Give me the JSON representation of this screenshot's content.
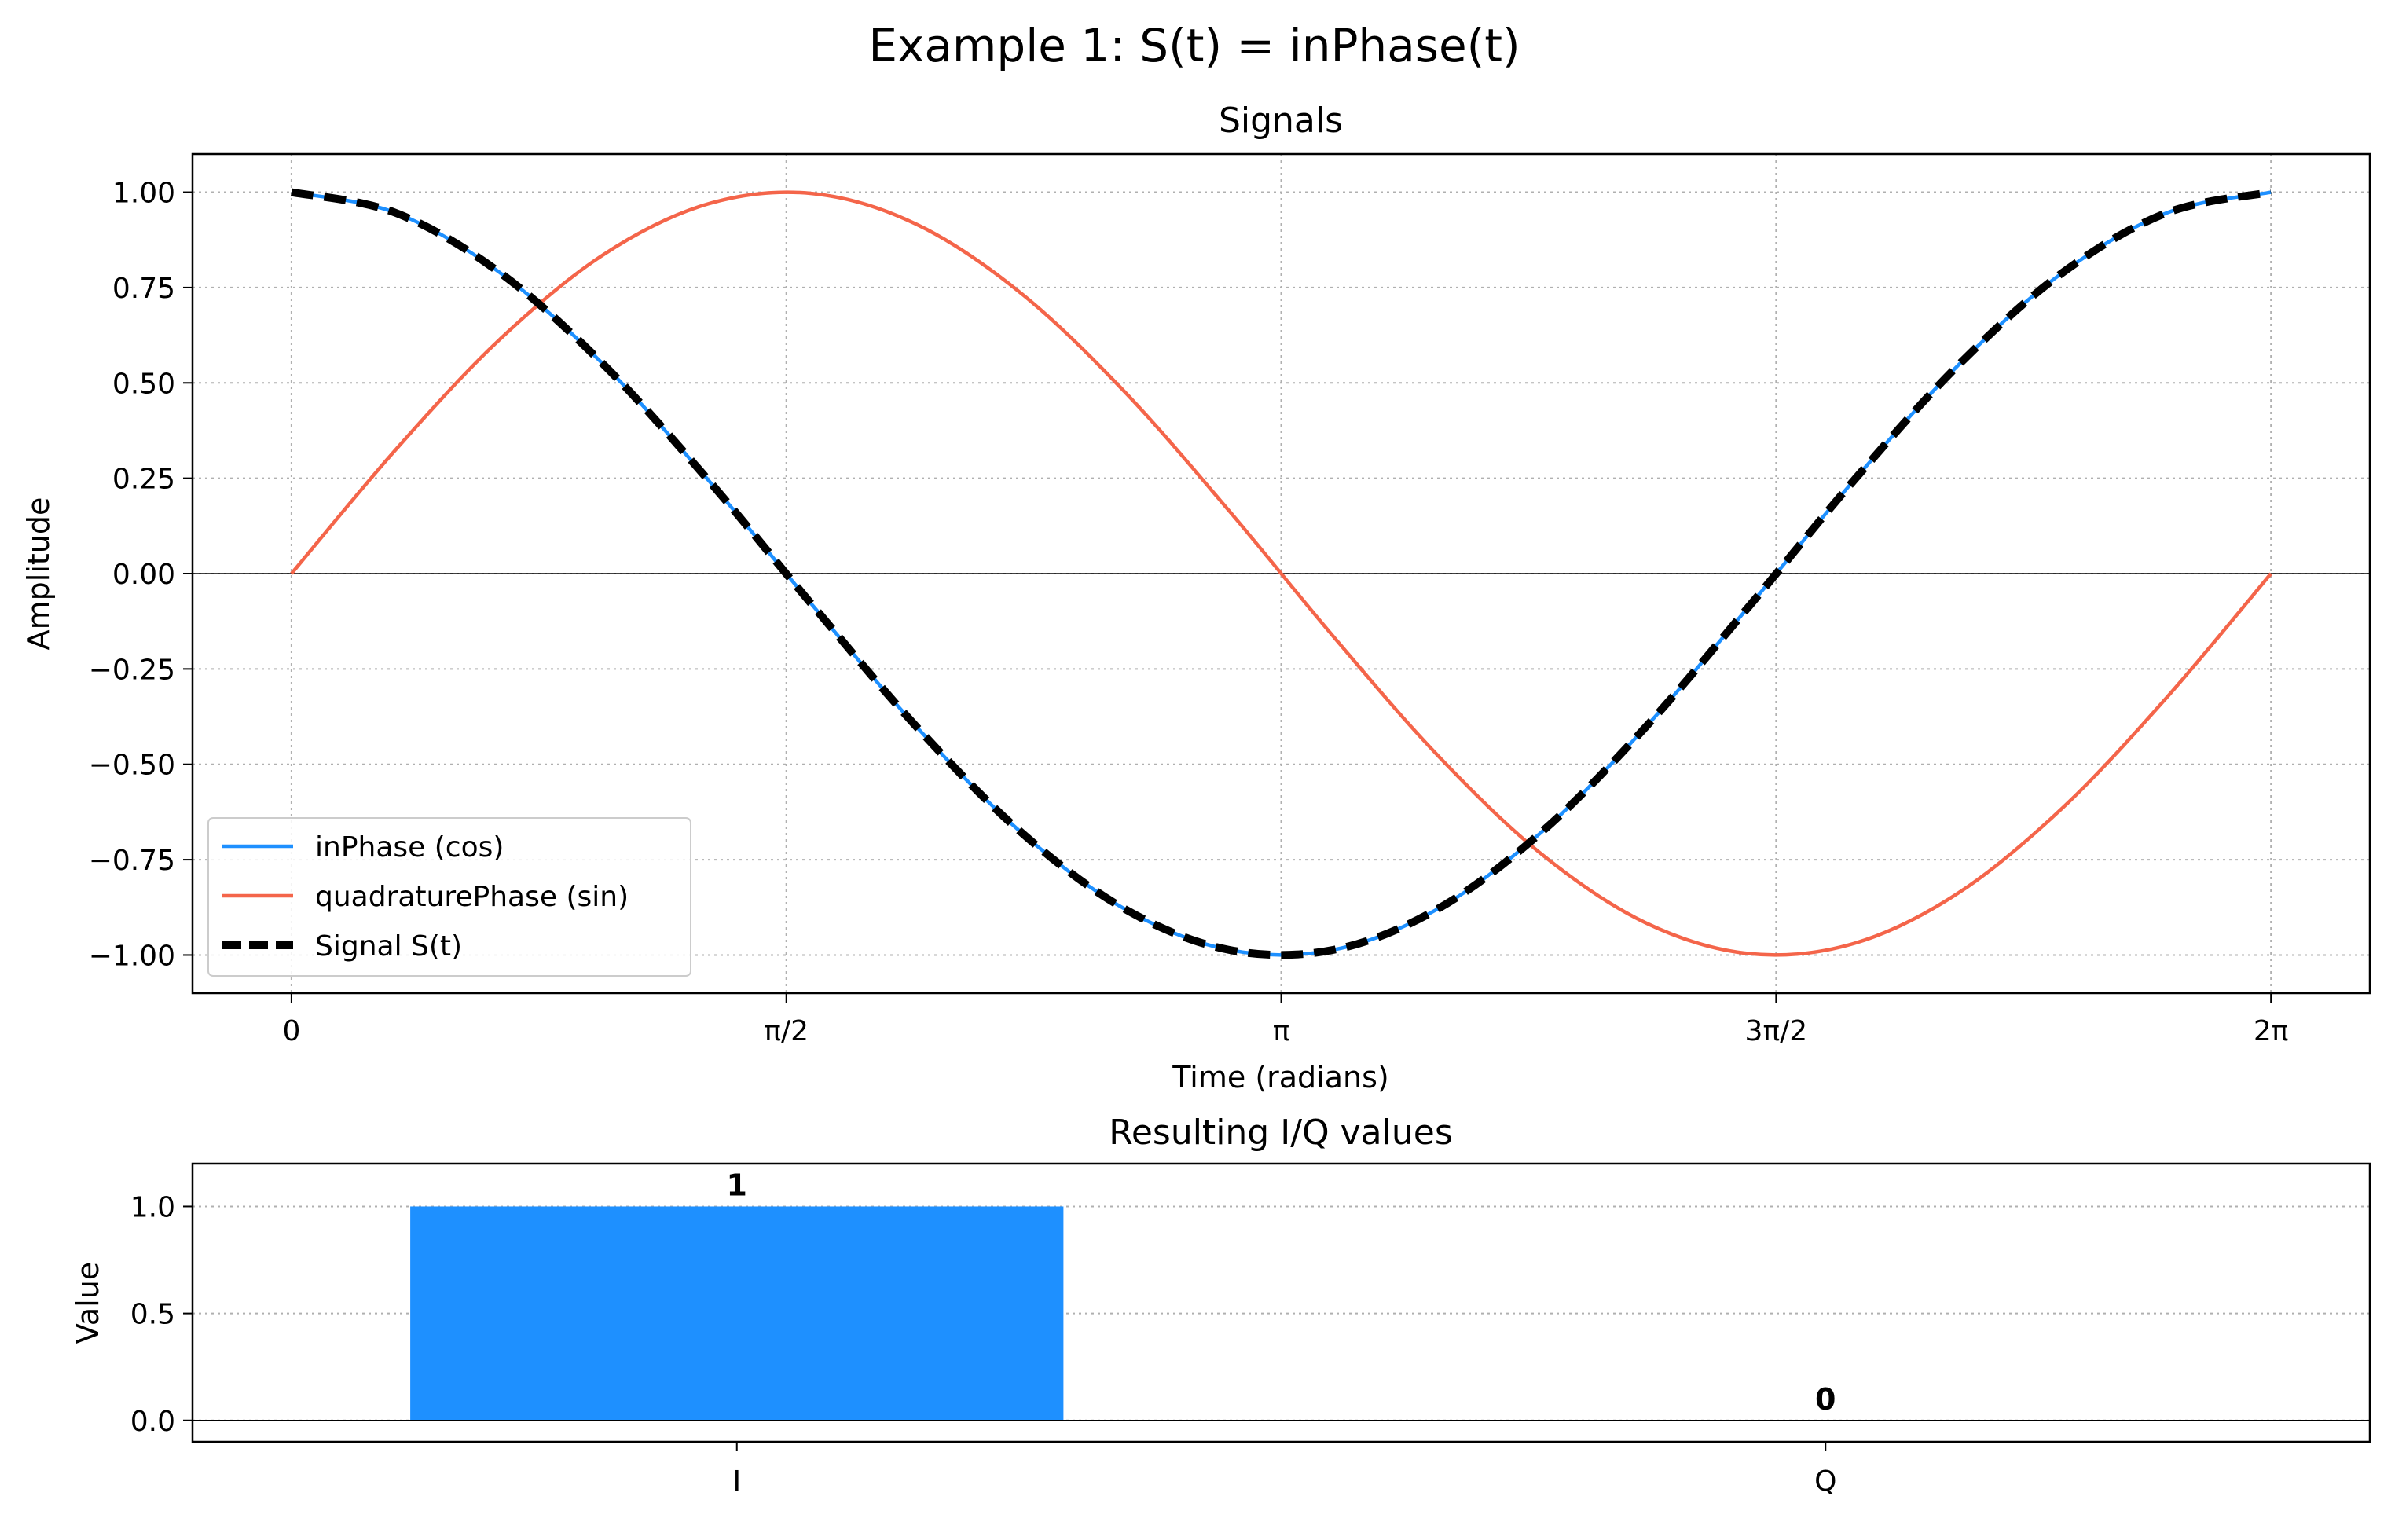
{
  "suptitle": "Example 1: S(t) = inPhase(t)",
  "colors": {
    "inphase": "#1e90ff",
    "quadrature": "#f4654a",
    "signal": "#000000",
    "bar": "#1e90ff"
  },
  "chart_data": [
    {
      "type": "line",
      "title": "Signals",
      "xlabel": "Time (radians)",
      "ylabel": "Amplitude",
      "xlim": [
        -0.314,
        6.597
      ],
      "ylim": [
        -1.1,
        1.1
      ],
      "x_ticks": [
        0,
        1.5708,
        3.1416,
        4.7124,
        6.2832
      ],
      "x_tick_labels": [
        "0",
        "π/2",
        "π",
        "3π/2",
        "2π"
      ],
      "y_ticks": [
        -1.0,
        -0.75,
        -0.5,
        -0.25,
        0.0,
        0.25,
        0.5,
        0.75,
        1.0
      ],
      "y_tick_labels": [
        "−1.00",
        "−0.75",
        "−0.50",
        "−0.25",
        "0.00",
        "0.25",
        "0.50",
        "0.75",
        "1.00"
      ],
      "x": [
        0,
        0.3307,
        0.6614,
        0.9921,
        1.3228,
        1.6535,
        1.9842,
        2.3149,
        2.6456,
        2.9762,
        3.3069,
        3.6376,
        3.9683,
        4.299,
        4.6297,
        4.9604,
        5.2911,
        5.6218,
        5.9525,
        6.2832
      ],
      "series": [
        {
          "name": "inPhase (cos)",
          "style": "solid",
          "values": [
            1.0,
            0.9458,
            0.7891,
            0.5469,
            0.2455,
            -0.0826,
            -0.4017,
            -0.6773,
            -0.8795,
            -0.9864,
            -0.9864,
            -0.8795,
            -0.6773,
            -0.4017,
            -0.0826,
            0.2455,
            0.5469,
            0.7891,
            0.9458,
            1.0
          ]
        },
        {
          "name": "quadraturePhase (sin)",
          "style": "solid",
          "values": [
            0.0,
            0.3247,
            0.6142,
            0.8372,
            0.9694,
            0.9966,
            0.9158,
            0.7357,
            0.4759,
            0.1646,
            -0.1646,
            -0.4759,
            -0.7357,
            -0.9158,
            -0.9966,
            -0.9694,
            -0.8372,
            -0.6142,
            -0.3247,
            0.0
          ]
        },
        {
          "name": "Signal S(t)",
          "style": "dashed",
          "values": [
            1.0,
            0.9458,
            0.7891,
            0.5469,
            0.2455,
            -0.0826,
            -0.4017,
            -0.6773,
            -0.8795,
            -0.9864,
            -0.9864,
            -0.8795,
            -0.6773,
            -0.4017,
            -0.0826,
            0.2455,
            0.5469,
            0.7891,
            0.9458,
            1.0
          ]
        }
      ],
      "grid": true,
      "legend": "lower-left"
    },
    {
      "type": "bar",
      "title": "Resulting I/Q values",
      "xlabel": "",
      "ylabel": "Value",
      "categories": [
        "I",
        "Q"
      ],
      "values": [
        1,
        0
      ],
      "value_labels": [
        "1",
        "0"
      ],
      "ylim": [
        -0.1,
        1.2
      ],
      "y_ticks": [
        0.0,
        0.5,
        1.0
      ],
      "y_tick_labels": [
        "0.0",
        "0.5",
        "1.0"
      ],
      "grid": true
    }
  ]
}
